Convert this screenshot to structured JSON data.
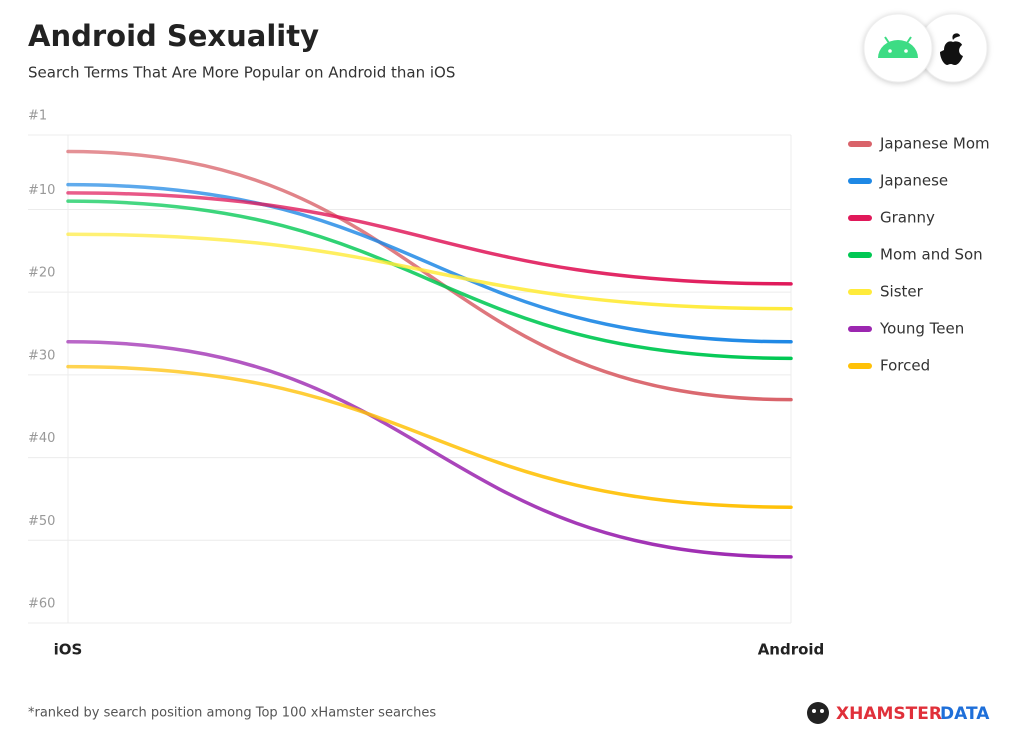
{
  "chart_data": {
    "type": "slope",
    "title": "Android Sexuality",
    "subtitle": "Search Terms That Are More Popular on Android than iOS",
    "categories": [
      "iOS",
      "Android"
    ],
    "series": [
      {
        "name": "Japanese Mom",
        "color": "#d9636a",
        "values": [
          3,
          33
        ]
      },
      {
        "name": "Japanese",
        "color": "#1e88e5",
        "values": [
          7,
          26
        ]
      },
      {
        "name": "Granny",
        "color": "#e0195a",
        "values": [
          8,
          19
        ]
      },
      {
        "name": "Mom and Son",
        "color": "#00c853",
        "values": [
          9,
          28
        ]
      },
      {
        "name": "Sister",
        "color": "#ffeb3b",
        "values": [
          13,
          22
        ]
      },
      {
        "name": "Young Teen",
        "color": "#9c27b0",
        "values": [
          26,
          52
        ]
      },
      {
        "name": "Forced",
        "color": "#ffc107",
        "values": [
          29,
          46
        ]
      }
    ],
    "ylim": [
      1,
      60
    ],
    "inverted": true,
    "yticks": [
      {
        "value": 1,
        "label": "#1"
      },
      {
        "value": 10,
        "label": "#10"
      },
      {
        "value": 20,
        "label": "#20"
      },
      {
        "value": 30,
        "label": "#30"
      },
      {
        "value": 40,
        "label": "#40"
      },
      {
        "value": 50,
        "label": "#50"
      },
      {
        "value": 60,
        "label": "#60"
      }
    ],
    "grid": true,
    "legend": "right",
    "note": "*ranked by search position among Top 100 xHamster searches",
    "brand": [
      "XHAMSTER",
      "DATA"
    ]
  }
}
